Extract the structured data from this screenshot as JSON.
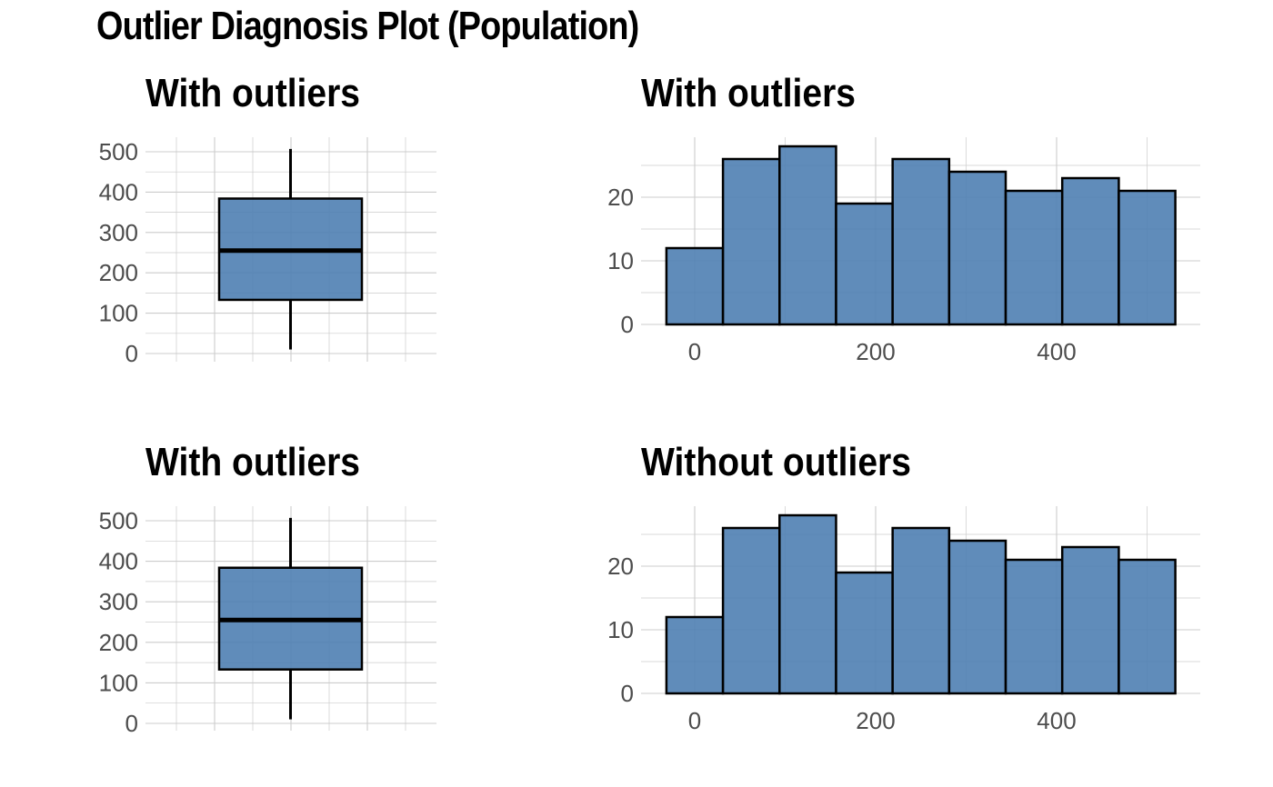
{
  "title": "Outlier Diagnosis Plot (Population)",
  "style": {
    "fill": "#4f7fb3",
    "stroke": "#000000",
    "grid": "#cccccc",
    "tick_text": "#4d4d4d"
  },
  "chart_data": [
    {
      "type": "box",
      "title": "With outliers",
      "ylim": [
        0,
        520
      ],
      "yticks": [
        "0",
        "100",
        "200",
        "300",
        "400",
        "500"
      ],
      "ytick_values": [
        0,
        100,
        200,
        300,
        400,
        500
      ],
      "box": {
        "min": 10,
        "q1": 133,
        "median": 255,
        "q3": 384,
        "max": 507
      },
      "grid": true
    },
    {
      "type": "bar",
      "title": "With outliers",
      "xlim": [
        -30,
        560
      ],
      "ylim": [
        0,
        29
      ],
      "xticks": [
        "0",
        "200",
        "400"
      ],
      "xtick_values": [
        0,
        200,
        400
      ],
      "yticks": [
        "0",
        "10",
        "20"
      ],
      "ytick_values": [
        0,
        10,
        20
      ],
      "bins": [
        [
          -31.25,
          31.25
        ],
        [
          31.25,
          93.75
        ],
        [
          93.75,
          156.25
        ],
        [
          156.25,
          218.75
        ],
        [
          218.75,
          281.25
        ],
        [
          281.25,
          343.75
        ],
        [
          343.75,
          406.25
        ],
        [
          406.25,
          468.75
        ],
        [
          468.75,
          531.25
        ]
      ],
      "values": [
        12,
        26,
        28,
        19,
        26,
        24,
        21,
        23,
        21
      ],
      "grid": true
    },
    {
      "type": "box",
      "title": "With outliers",
      "ylim": [
        0,
        520
      ],
      "yticks": [
        "0",
        "100",
        "200",
        "300",
        "400",
        "500"
      ],
      "ytick_values": [
        0,
        100,
        200,
        300,
        400,
        500
      ],
      "box": {
        "min": 10,
        "q1": 133,
        "median": 255,
        "q3": 384,
        "max": 507
      },
      "grid": true
    },
    {
      "type": "bar",
      "title": "Without outliers",
      "xlim": [
        -30,
        560
      ],
      "ylim": [
        0,
        29
      ],
      "xticks": [
        "0",
        "200",
        "400"
      ],
      "xtick_values": [
        0,
        200,
        400
      ],
      "yticks": [
        "0",
        "10",
        "20"
      ],
      "ytick_values": [
        0,
        10,
        20
      ],
      "bins": [
        [
          -31.25,
          31.25
        ],
        [
          31.25,
          93.75
        ],
        [
          93.75,
          156.25
        ],
        [
          156.25,
          218.75
        ],
        [
          218.75,
          281.25
        ],
        [
          281.25,
          343.75
        ],
        [
          343.75,
          406.25
        ],
        [
          406.25,
          468.75
        ],
        [
          468.75,
          531.25
        ]
      ],
      "values": [
        12,
        26,
        28,
        19,
        26,
        24,
        21,
        23,
        21
      ],
      "grid": true
    }
  ]
}
